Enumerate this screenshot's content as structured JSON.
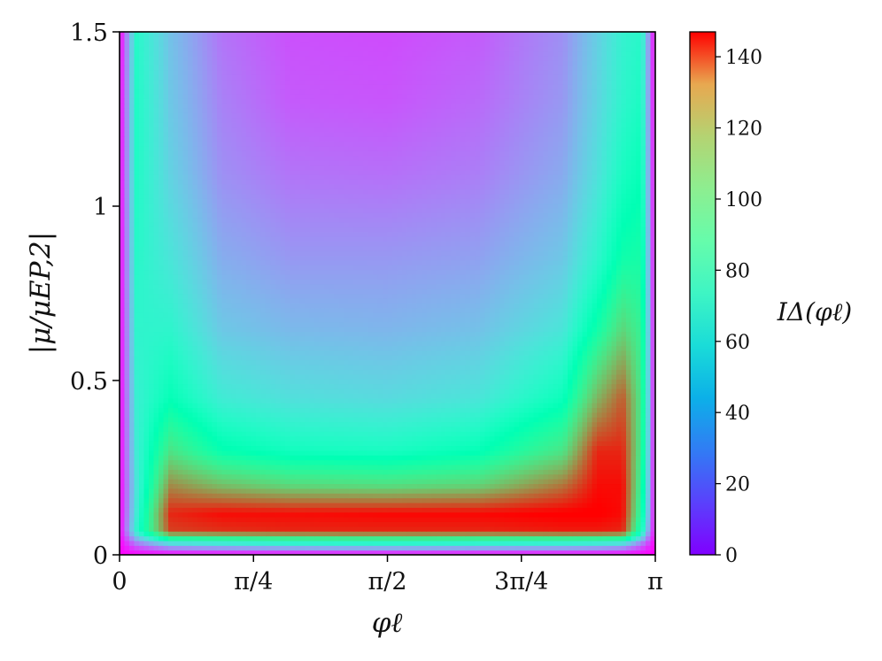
{
  "chart_data": {
    "type": "heatmap",
    "colormap": "rainbow",
    "xlabel": "φℓ",
    "ylabel": "|μ/μEP,2|",
    "colorbar_label": "IΔ(φℓ)",
    "xlim": [
      0,
      3.14159
    ],
    "ylim": [
      0,
      1.5
    ],
    "xticks": [
      {
        "value": 0,
        "label": "0"
      },
      {
        "value": 0.7854,
        "label": "π/4"
      },
      {
        "value": 1.5708,
        "label": "π/2"
      },
      {
        "value": 2.3562,
        "label": "3π/4"
      },
      {
        "value": 3.14159,
        "label": "π"
      }
    ],
    "yticks": [
      {
        "value": 0,
        "label": "0"
      },
      {
        "value": 0.5,
        "label": "0.5"
      },
      {
        "value": 1,
        "label": "1"
      },
      {
        "value": 1.5,
        "label": "1.5"
      }
    ],
    "colorbar_range": [
      0,
      147
    ],
    "colorbar_ticks": [
      {
        "value": 0,
        "label": "0"
      },
      {
        "value": 20,
        "label": "20"
      },
      {
        "value": 40,
        "label": "40"
      },
      {
        "value": 60,
        "label": "60"
      },
      {
        "value": 80,
        "label": "80"
      },
      {
        "value": 100,
        "label": "100"
      },
      {
        "value": 120,
        "label": "120"
      },
      {
        "value": 140,
        "label": "140"
      }
    ],
    "grid_x_phi": [
      0,
      0.1,
      0.3,
      0.6,
      1.0,
      1.5708,
      2.1,
      2.6,
      2.8,
      2.95,
      3.06,
      3.14159
    ],
    "grid_y_mu": [
      0,
      0.03,
      0.07,
      0.12,
      0.2,
      0.3,
      0.45,
      0.65,
      0.85,
      1.1,
      1.3,
      1.5
    ],
    "values": [
      [
        0,
        0,
        0,
        0,
        0,
        0,
        0,
        0,
        0,
        0,
        0,
        0
      ],
      [
        0,
        20,
        40,
        45,
        50,
        52,
        50,
        48,
        45,
        40,
        20,
        0
      ],
      [
        0,
        60,
        135,
        138,
        140,
        140,
        140,
        142,
        142,
        140,
        70,
        0
      ],
      [
        0,
        55,
        140,
        145,
        145,
        146,
        146,
        148,
        148,
        145,
        80,
        0
      ],
      [
        0,
        52,
        120,
        108,
        100,
        98,
        102,
        125,
        145,
        145,
        85,
        0
      ],
      [
        0,
        55,
        95,
        75,
        68,
        66,
        72,
        95,
        140,
        140,
        90,
        0
      ],
      [
        0,
        57,
        72,
        55,
        50,
        48,
        52,
        70,
        110,
        130,
        92,
        0
      ],
      [
        0,
        60,
        60,
        42,
        38,
        37,
        40,
        52,
        78,
        100,
        88,
        0
      ],
      [
        0,
        62,
        52,
        35,
        30,
        30,
        32,
        42,
        60,
        78,
        80,
        0
      ],
      [
        0,
        64,
        45,
        28,
        22,
        21,
        24,
        34,
        50,
        66,
        72,
        0
      ],
      [
        0,
        64,
        42,
        25,
        17,
        16,
        20,
        30,
        46,
        60,
        66,
        0
      ],
      [
        0,
        62,
        40,
        22,
        15,
        14,
        17,
        28,
        44,
        58,
        62,
        0
      ]
    ]
  }
}
